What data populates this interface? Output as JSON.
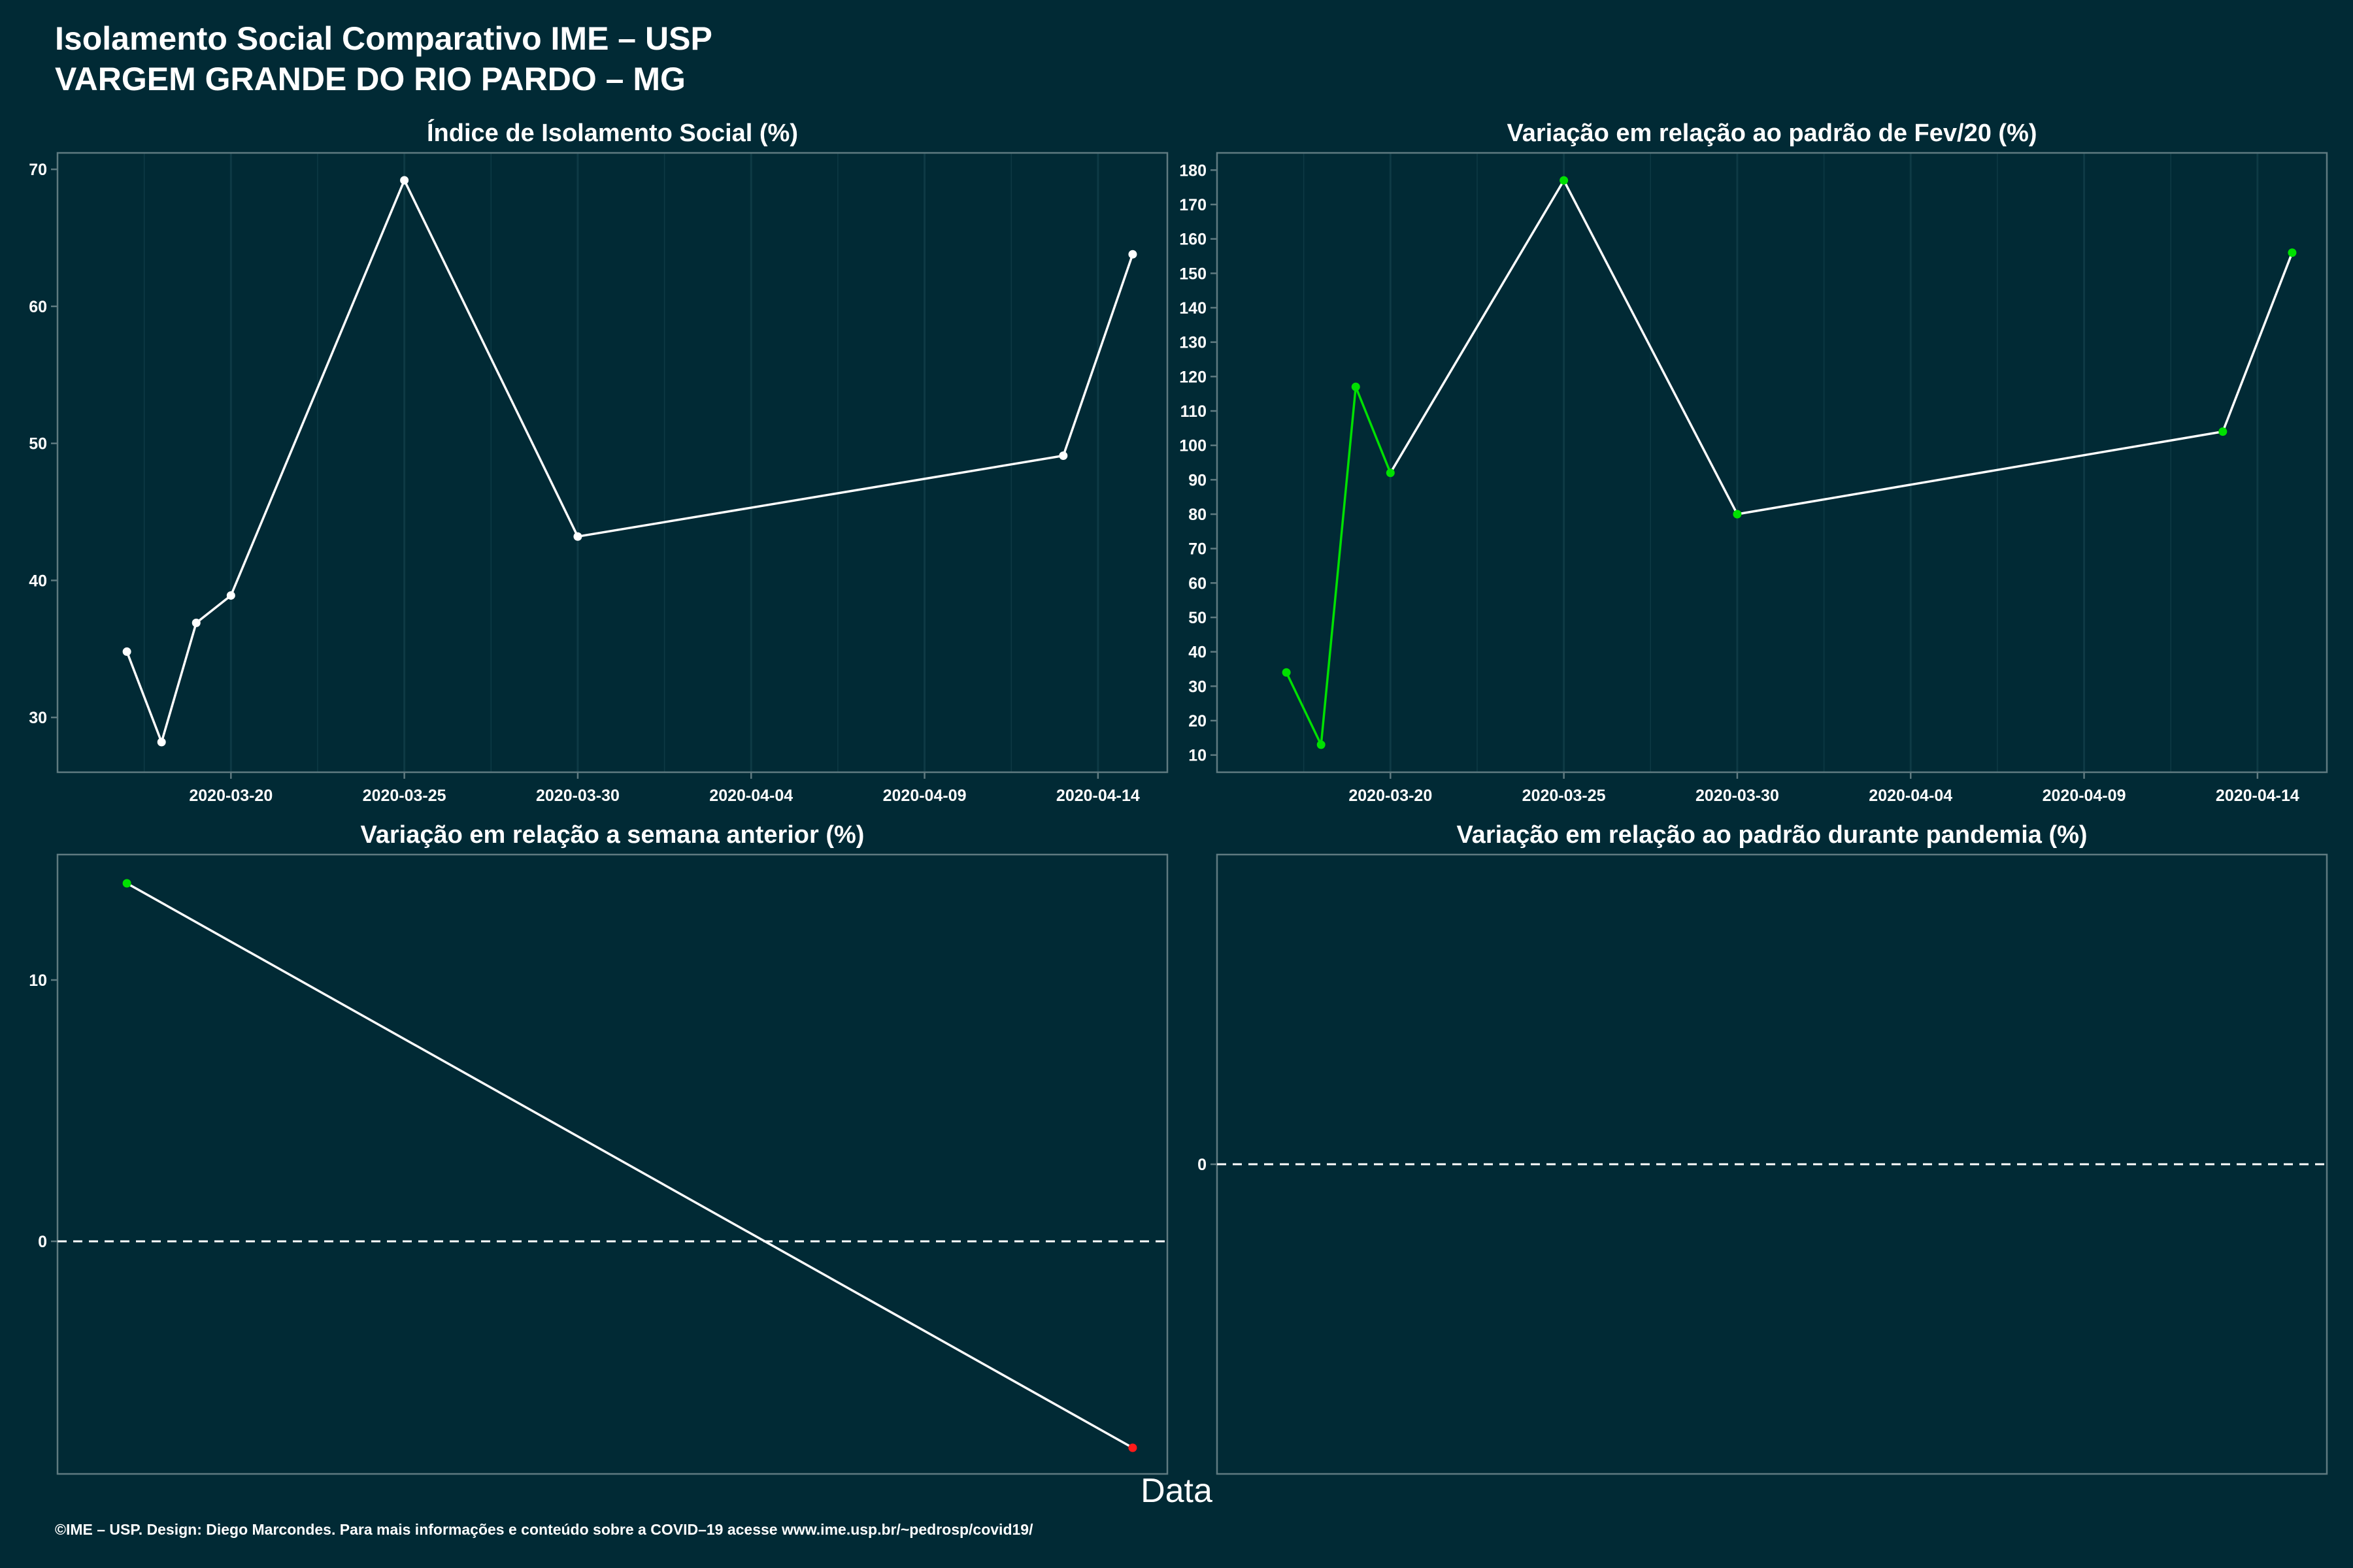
{
  "title": {
    "line1": "Isolamento Social Comparativo IME – USP",
    "line2": "VARGEM GRANDE DO RIO PARDO – MG"
  },
  "x_axis_title": "Data",
  "footer": "©IME – USP. Design: Diego Marcondes. Para mais informações e conteúdo sobre a COVID–19 acesse www.ime.usp.br/~pedrosp/covid19/",
  "colors": {
    "background": "#012a35",
    "line": "#ffffff",
    "positive": "#00e000",
    "negative": "#ff1a1a",
    "grid": "#0e3a45",
    "panel_border": "#5f7a80"
  },
  "chart_data": [
    {
      "type": "line",
      "title": "Índice de Isolamento Social (%)",
      "x_ticks": [
        "2020-03-20",
        "2020-03-25",
        "2020-03-30",
        "2020-04-04",
        "2020-04-09",
        "2020-04-14"
      ],
      "y_ticks": [
        30,
        40,
        50,
        60,
        70
      ],
      "xlim": [
        "2020-03-15",
        "2020-04-16"
      ],
      "ylim": [
        26,
        71.2
      ],
      "point_color": "white",
      "series": [
        {
          "x": [
            "2020-03-17",
            "2020-03-18",
            "2020-03-19",
            "2020-03-20",
            "2020-03-25",
            "2020-03-30",
            "2020-04-13",
            "2020-04-15"
          ],
          "y": [
            34.8,
            28.2,
            36.9,
            38.9,
            69.2,
            43.2,
            49.1,
            63.8
          ]
        }
      ]
    },
    {
      "type": "line",
      "title": "Variação em relação ao padrão de Fev/20 (%)",
      "x_ticks": [
        "2020-03-20",
        "2020-03-25",
        "2020-03-30",
        "2020-04-04",
        "2020-04-09",
        "2020-04-14"
      ],
      "y_ticks": [
        10,
        20,
        30,
        40,
        50,
        60,
        70,
        80,
        90,
        100,
        110,
        120,
        130,
        140,
        150,
        160,
        170,
        180
      ],
      "xlim": [
        "2020-03-15",
        "2020-04-16"
      ],
      "ylim": [
        5,
        185
      ],
      "point_color": "green",
      "series": [
        {
          "x": [
            "2020-03-17",
            "2020-03-18",
            "2020-03-19",
            "2020-03-20",
            "2020-03-25",
            "2020-03-30",
            "2020-04-13",
            "2020-04-15"
          ],
          "y": [
            34,
            13,
            117,
            92,
            177,
            80,
            104,
            156
          ]
        }
      ]
    },
    {
      "type": "line",
      "title": "Variação em relação a semana anterior (%)",
      "x_ticks": [],
      "y_ticks": [
        0,
        10
      ],
      "xlim": [
        "2020-03-15",
        "2020-04-16"
      ],
      "ylim": [
        -8.9,
        14.8
      ],
      "reference_line": 0,
      "series": [
        {
          "x": [
            "2020-03-17",
            "2020-04-15"
          ],
          "y": [
            13.7,
            -7.9
          ],
          "point_colors": [
            "green",
            "red"
          ]
        }
      ]
    },
    {
      "type": "line",
      "title": "Variação em relação ao padrão durante pandemia (%)",
      "x_ticks": [],
      "y_ticks": [
        0
      ],
      "xlim": [
        "2020-03-15",
        "2020-04-16"
      ],
      "ylim": [
        -1,
        1
      ],
      "reference_line": 0,
      "series": []
    }
  ]
}
